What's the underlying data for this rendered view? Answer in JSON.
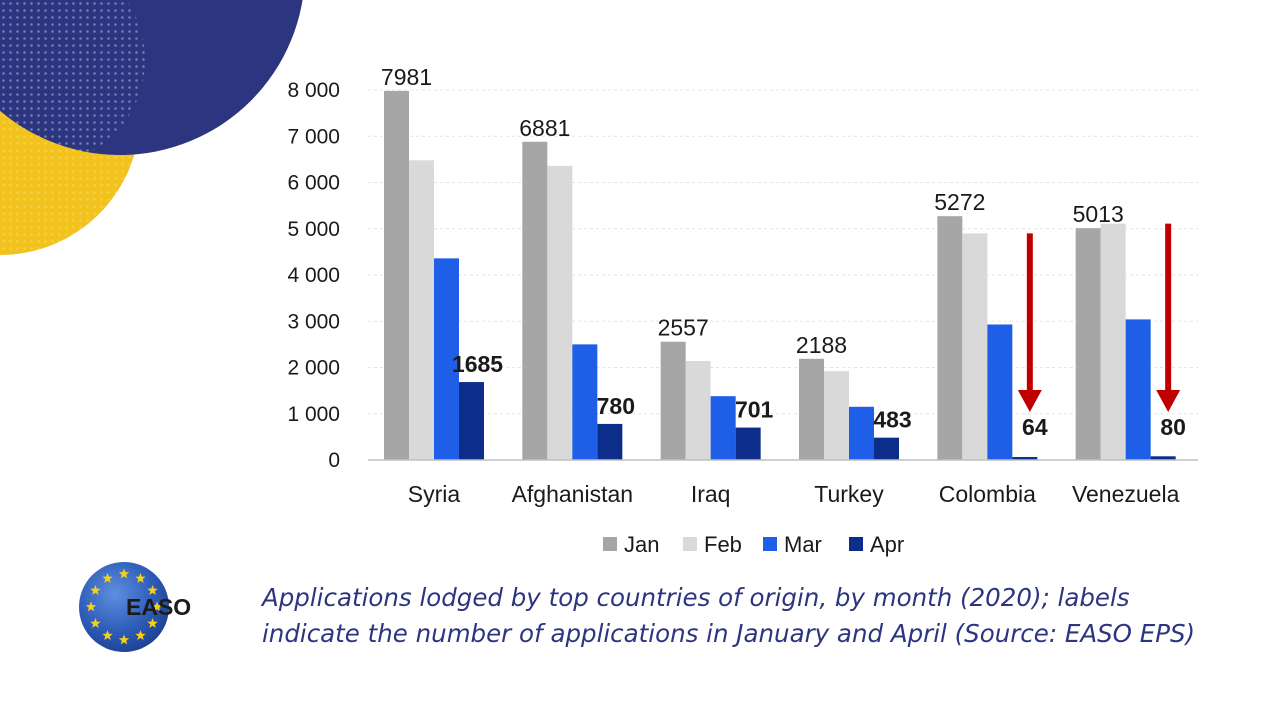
{
  "chart_data": {
    "type": "bar",
    "categories": [
      "Syria",
      "Afghanistan",
      "Iraq",
      "Turkey",
      "Colombia",
      "Venezuela"
    ],
    "series": [
      {
        "name": "Jan",
        "values": [
          7981,
          6881,
          2557,
          2188,
          5272,
          5013
        ]
      },
      {
        "name": "Feb",
        "values": [
          6480,
          6360,
          2140,
          1920,
          4900,
          5110
        ]
      },
      {
        "name": "Mar",
        "values": [
          4360,
          2500,
          1380,
          1150,
          2930,
          3040
        ]
      },
      {
        "name": "Apr",
        "values": [
          1685,
          780,
          701,
          483,
          64,
          80
        ]
      }
    ],
    "ylim": [
      0,
      8000
    ],
    "yticks": [
      0,
      1000,
      2000,
      3000,
      4000,
      5000,
      6000,
      7000,
      8000
    ],
    "ytick_labels": [
      "0",
      "1 000",
      "2 000",
      "3 000",
      "4 000",
      "5 000",
      "6 000",
      "7 000",
      "8 000"
    ],
    "data_labels": {
      "jan": [
        "7981",
        "6881",
        "2557",
        "2188",
        "5272",
        "5013"
      ],
      "apr": [
        "1685",
        "780",
        "701",
        "483",
        "64",
        "80"
      ]
    },
    "annotations": {
      "drop_arrows": [
        "Colombia",
        "Venezuela"
      ],
      "arrow_color": "#c00000"
    },
    "colors": {
      "Jan": "#a6a6a6",
      "Feb": "#d9d9d9",
      "Mar": "#1f5fe8",
      "Apr": "#0c2e8a"
    },
    "grid": true,
    "legend_position": "bottom",
    "title": "",
    "xlabel": "",
    "ylabel": ""
  },
  "caption": {
    "line1": "Applications lodged by top countries of origin, by month (2020); labels",
    "line2": "indicate the number of applications in January and April (Source: EASO EPS)"
  },
  "logo": {
    "text": "EASO",
    "icon": "eu-stars-globe-icon",
    "colors": {
      "globe": "#2e5db8",
      "stars": "#f7d117"
    }
  },
  "decoration": {
    "colors": {
      "navy": "#2c3580",
      "yellow": "#f2c31c"
    }
  }
}
